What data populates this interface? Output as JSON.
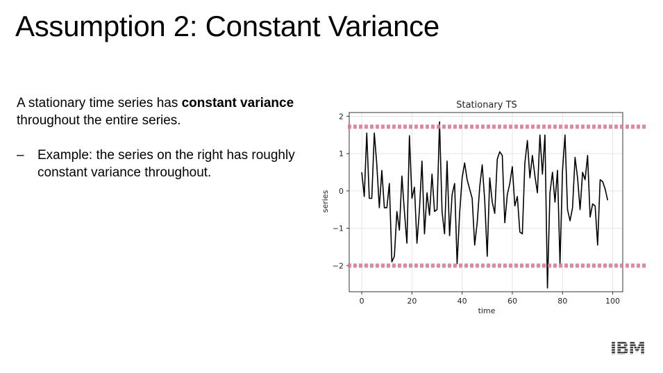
{
  "slide": {
    "title": "Assumption 2: Constant Variance",
    "intro_prefix": "A stationary time series has ",
    "intro_bold": "constant variance",
    "intro_suffix": " throughout the entire series.",
    "bullet_dash": "–",
    "bullet_text": "Example: the series on the right has roughly constant variance throughout.",
    "logo_text": "IBM",
    "logo_color": "#1f1f1f"
  },
  "chart_data": {
    "type": "line",
    "title": "Stationary TS",
    "xlabel": "time",
    "ylabel": "series",
    "xlim": [
      -5,
      104
    ],
    "ylim": [
      -2.7,
      2.1
    ],
    "xticks": [
      0,
      20,
      40,
      60,
      80,
      100
    ],
    "yticks": [
      -2,
      -1,
      0,
      1,
      2
    ],
    "grid": true,
    "line_color": "#000000",
    "band_color": "#e0789a",
    "bands": [
      1.72,
      -2.0
    ],
    "series": [
      {
        "values": [
          0.5,
          -0.15,
          1.55,
          -0.2,
          -0.2,
          1.55,
          0.7,
          -0.45,
          0.55,
          -0.45,
          -0.45,
          0.2,
          -1.9,
          -1.75,
          -0.55,
          -1.05,
          0.4,
          -0.55,
          -1.4,
          1.48,
          -0.2,
          0.1,
          -1.4,
          -0.5,
          0.8,
          -1.15,
          -0.05,
          -0.65,
          0.45,
          -0.55,
          -0.5,
          1.85,
          -0.55,
          -1.15,
          0.8,
          -1.2,
          -0.1,
          0.2,
          -1.95,
          -0.6,
          0.35,
          0.75,
          0.3,
          0.05,
          -0.2,
          -1.45,
          -0.85,
          0.1,
          0.7,
          -0.25,
          -1.75,
          0.35,
          -0.3,
          -0.6,
          0.85,
          1.05,
          0.95,
          -0.85,
          -0.1,
          0.2,
          0.65,
          -0.4,
          -0.15,
          -1.1,
          -1.15,
          0.75,
          1.35,
          0.35,
          0.95,
          0.4,
          -0.05,
          1.5,
          0.45,
          1.5,
          -2.6,
          -0.05,
          0.5,
          -0.3,
          0.55,
          -1.95,
          0.55,
          1.5,
          -0.5,
          -0.8,
          -0.45,
          0.9,
          0.35,
          -0.5,
          0.5,
          0.3,
          0.95,
          -0.7,
          -0.35,
          -0.4,
          -1.45,
          0.3,
          0.25,
          0.05,
          -0.25
        ]
      }
    ]
  }
}
